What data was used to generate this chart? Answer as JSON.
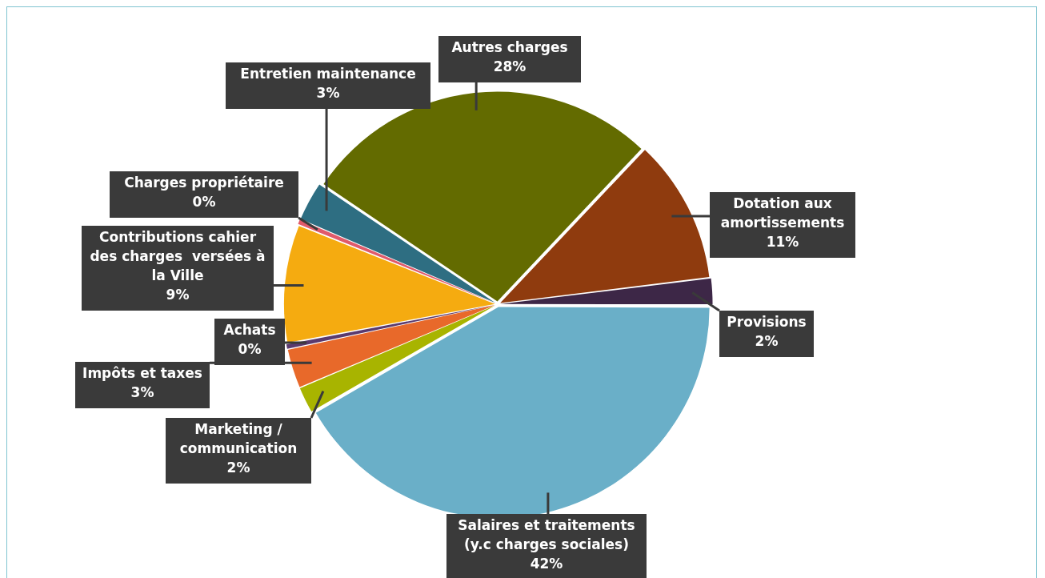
{
  "chart_data": {
    "type": "pie",
    "categories": [
      "Autres charges",
      "Dotation aux amortissements",
      "Provisions",
      "Salaires et traitements (y.c charges sociales)",
      "Marketing / communication",
      "Impôts et taxes",
      "Achats",
      "Contributions cahier des charges  versées à la Ville",
      "Charges propriétaire",
      "Entretien maintenance"
    ],
    "values": [
      27.6,
      11,
      2,
      41.6,
      2,
      3,
      0.4,
      9,
      0.4,
      3
    ],
    "value_labels": [
      "28%",
      "11%",
      "2%",
      "42%",
      "2%",
      "3%",
      "0%",
      "9%",
      "0%",
      "3%"
    ],
    "colors": [
      "#636b00",
      "#8f3b0e",
      "#3d2747",
      "#6aafc8",
      "#a8b400",
      "#e8692a",
      "#5a3a6e",
      "#f5ab10",
      "#e05a6a",
      "#2e6e82"
    ],
    "data_labels": true
  }
}
